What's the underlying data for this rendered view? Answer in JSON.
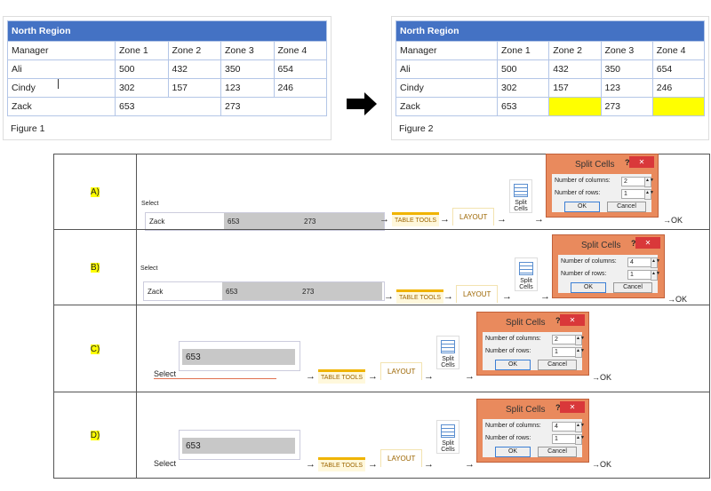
{
  "figure1": {
    "title": "North Region",
    "headers": [
      "Manager",
      "Zone 1",
      "Zone 2",
      "Zone 3",
      "Zone 4"
    ],
    "rows": [
      [
        "Ali",
        "500",
        "432",
        "350",
        "654"
      ],
      [
        "Cindy",
        "302",
        "157",
        "123",
        "246"
      ]
    ],
    "last": {
      "name": "Zack",
      "a": "653",
      "b": "273"
    },
    "caption": "Figure 1"
  },
  "figure2": {
    "title": "North Region",
    "headers": [
      "Manager",
      "Zone 1",
      "Zone 2",
      "Zone 3",
      "Zone 4"
    ],
    "rows": [
      [
        "Ali",
        "500",
        "432",
        "350",
        "654"
      ],
      [
        "Cindy",
        "302",
        "157",
        "123",
        "246"
      ],
      [
        "Zack",
        "653",
        "",
        "273",
        ""
      ]
    ],
    "caption": "Figure 2",
    "highlight": "#ffff00"
  },
  "steps": {
    "select": "Select",
    "table_tools": "TABLE TOOLS",
    "layout": "LAYOUT",
    "split": "Split",
    "cells": "Cells",
    "dialog_title": "Split Cells",
    "help": "?",
    "close": "✕",
    "columns_label": "Number of columns:",
    "rows_label": "Number of rows:",
    "ok": "OK",
    "cancel": "Cancel",
    "final": "OK",
    "arrow": "→"
  },
  "options": [
    {
      "label": "A)",
      "table_cells": [
        "Zack",
        "653",
        "273"
      ],
      "columns": "2",
      "rows": "1"
    },
    {
      "label": "B)",
      "table_cells": [
        "Zack",
        "653",
        "273"
      ],
      "columns": "4",
      "rows": "1"
    },
    {
      "label": "C)",
      "table_cells": [
        "653"
      ],
      "columns": "2",
      "rows": "1"
    },
    {
      "label": "D)",
      "table_cells": [
        "653"
      ],
      "columns": "4",
      "rows": "1"
    }
  ]
}
